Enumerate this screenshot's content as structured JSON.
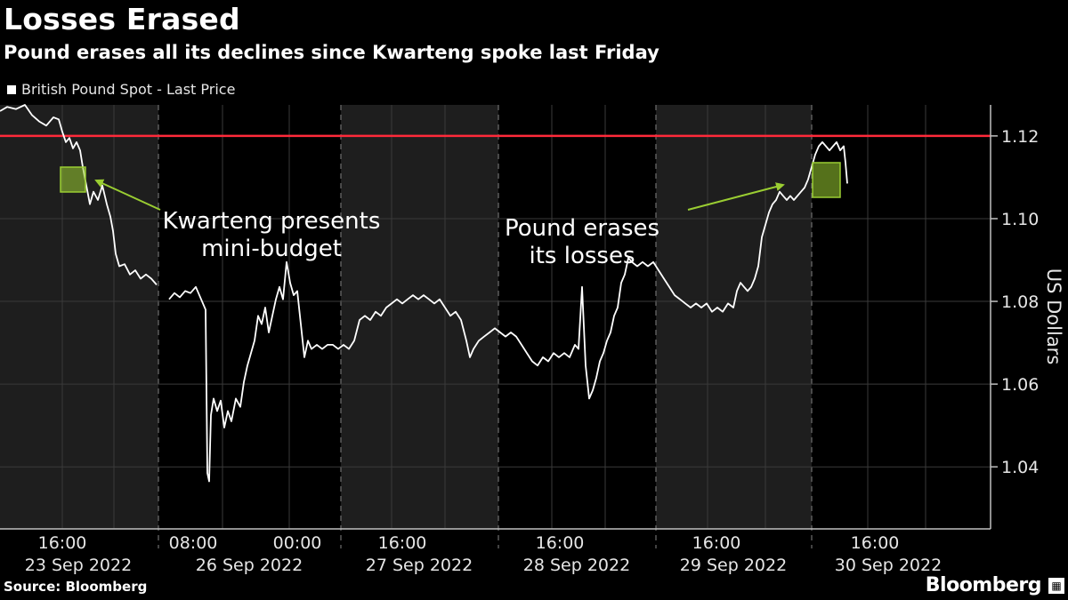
{
  "header": {
    "title": "Losses Erased",
    "subtitle": "Pound erases all its declines since Kwarteng spoke last Friday",
    "legend": "British Pound Spot - Last Price"
  },
  "footer": {
    "source": "Source: Bloomberg",
    "brand": "Bloomberg",
    "brand_icon": "bloomberg-terminal-icon"
  },
  "colors": {
    "background": "#000000",
    "shaded_session": "#1e1e1e",
    "line": "#ffffff",
    "reference_line": "#ff2a3a",
    "highlight": "#9acd32",
    "annotation_text": "#ffffff",
    "axis_text": "#e6e6e6"
  },
  "chart_data": {
    "type": "line",
    "title": "Losses Erased",
    "subtitle": "Pound erases all its declines since Kwarteng spoke last Friday",
    "ylabel": "US Dollars",
    "ylim": [
      1.025,
      1.1275
    ],
    "y_ticks": [
      "1.04",
      "1.06",
      "1.08",
      "1.10",
      "1.12"
    ],
    "x_tick_labels": [
      "16:00",
      "08:00",
      "00:00",
      "16:00",
      "16:00",
      "16:00",
      "16:00"
    ],
    "x_date_labels": [
      "23 Sep 2022",
      "26 Sep 2022",
      "27 Sep 2022",
      "28 Sep 2022",
      "29 Sep 2022",
      "30 Sep 2022"
    ],
    "reference_line": {
      "value": 1.12
    },
    "series": [
      {
        "name": "British Pound Spot - Last Price",
        "points": [
          [
            0,
            1.126
          ],
          [
            8,
            1.127
          ],
          [
            18,
            1.1265
          ],
          [
            28,
            1.1275
          ],
          [
            36,
            1.125
          ],
          [
            44,
            1.1235
          ],
          [
            52,
            1.1225
          ],
          [
            60,
            1.1245
          ],
          [
            66,
            1.124
          ],
          [
            70,
            1.121
          ],
          [
            74,
            1.1185
          ],
          [
            78,
            1.1195
          ],
          [
            82,
            1.117
          ],
          [
            86,
            1.1185
          ],
          [
            90,
            1.1165
          ],
          [
            93,
            1.1125
          ],
          [
            97,
            1.108
          ],
          [
            101,
            1.1035
          ],
          [
            105,
            1.1065
          ],
          [
            110,
            1.1045
          ],
          [
            115,
            1.108
          ],
          [
            120,
            1.1035
          ],
          [
            124,
            1.1005
          ],
          [
            127,
            1.097
          ],
          [
            130,
            1.0915
          ],
          [
            134,
            1.0885
          ],
          [
            140,
            1.089
          ],
          [
            146,
            1.0865
          ],
          [
            152,
            1.0875
          ],
          [
            158,
            1.0855
          ],
          [
            164,
            1.0865
          ],
          [
            170,
            1.0855
          ],
          [
            176,
            1.084
          ],
          [
            190,
            1.0805
          ],
          [
            196,
            1.082
          ],
          [
            202,
            1.081
          ],
          [
            208,
            1.0825
          ],
          [
            214,
            1.082
          ],
          [
            220,
            1.0835
          ],
          [
            226,
            1.0805
          ],
          [
            231,
            1.078
          ],
          [
            233,
            1.0385
          ],
          [
            235,
            1.0365
          ],
          [
            237,
            1.0525
          ],
          [
            240,
            1.0565
          ],
          [
            244,
            1.0535
          ],
          [
            248,
            1.056
          ],
          [
            252,
            1.0495
          ],
          [
            256,
            1.0535
          ],
          [
            260,
            1.051
          ],
          [
            265,
            1.0565
          ],
          [
            270,
            1.0545
          ],
          [
            274,
            1.0605
          ],
          [
            278,
            1.0645
          ],
          [
            282,
            1.0675
          ],
          [
            286,
            1.0705
          ],
          [
            290,
            1.0765
          ],
          [
            294,
            1.0745
          ],
          [
            298,
            1.0785
          ],
          [
            302,
            1.0725
          ],
          [
            306,
            1.0765
          ],
          [
            310,
            1.0805
          ],
          [
            314,
            1.0835
          ],
          [
            318,
            1.0805
          ],
          [
            322,
            1.0895
          ],
          [
            326,
            1.0845
          ],
          [
            330,
            1.0815
          ],
          [
            334,
            1.0825
          ],
          [
            338,
            1.0745
          ],
          [
            342,
            1.0665
          ],
          [
            346,
            1.0705
          ],
          [
            350,
            1.0685
          ],
          [
            356,
            1.0695
          ],
          [
            362,
            1.0685
          ],
          [
            368,
            1.0695
          ],
          [
            374,
            1.0695
          ],
          [
            380,
            1.0685
          ],
          [
            386,
            1.0695
          ],
          [
            392,
            1.0685
          ],
          [
            398,
            1.0705
          ],
          [
            404,
            1.0755
          ],
          [
            410,
            1.0765
          ],
          [
            416,
            1.0755
          ],
          [
            422,
            1.0775
          ],
          [
            428,
            1.0765
          ],
          [
            434,
            1.0785
          ],
          [
            440,
            1.0795
          ],
          [
            446,
            1.0805
          ],
          [
            452,
            1.0795
          ],
          [
            458,
            1.0805
          ],
          [
            464,
            1.0815
          ],
          [
            470,
            1.0805
          ],
          [
            476,
            1.0815
          ],
          [
            482,
            1.0805
          ],
          [
            488,
            1.0795
          ],
          [
            494,
            1.0805
          ],
          [
            500,
            1.0785
          ],
          [
            506,
            1.0765
          ],
          [
            512,
            1.0775
          ],
          [
            518,
            1.0755
          ],
          [
            524,
            1.0705
          ],
          [
            528,
            1.0665
          ],
          [
            532,
            1.0685
          ],
          [
            538,
            1.0705
          ],
          [
            544,
            1.0715
          ],
          [
            550,
            1.0725
          ],
          [
            556,
            1.0735
          ],
          [
            562,
            1.0725
          ],
          [
            568,
            1.0715
          ],
          [
            574,
            1.0725
          ],
          [
            580,
            1.0715
          ],
          [
            586,
            1.0695
          ],
          [
            592,
            1.0675
          ],
          [
            598,
            1.0655
          ],
          [
            604,
            1.0645
          ],
          [
            610,
            1.0665
          ],
          [
            616,
            1.0655
          ],
          [
            622,
            1.0675
          ],
          [
            628,
            1.0665
          ],
          [
            634,
            1.0675
          ],
          [
            640,
            1.0665
          ],
          [
            646,
            1.0695
          ],
          [
            650,
            1.0685
          ],
          [
            654,
            1.0835
          ],
          [
            658,
            1.0645
          ],
          [
            662,
            1.0565
          ],
          [
            666,
            1.0585
          ],
          [
            670,
            1.0615
          ],
          [
            674,
            1.0655
          ],
          [
            678,
            1.0675
          ],
          [
            682,
            1.0705
          ],
          [
            686,
            1.0725
          ],
          [
            690,
            1.0765
          ],
          [
            694,
            1.0785
          ],
          [
            698,
            1.0845
          ],
          [
            702,
            1.0865
          ],
          [
            706,
            1.0905
          ],
          [
            710,
            1.0895
          ],
          [
            716,
            1.0885
          ],
          [
            722,
            1.0895
          ],
          [
            728,
            1.0885
          ],
          [
            734,
            1.0895
          ],
          [
            740,
            1.0875
          ],
          [
            746,
            1.0855
          ],
          [
            752,
            1.0835
          ],
          [
            758,
            1.0815
          ],
          [
            764,
            1.0805
          ],
          [
            770,
            1.0795
          ],
          [
            776,
            1.0785
          ],
          [
            782,
            1.0795
          ],
          [
            788,
            1.0785
          ],
          [
            794,
            1.0795
          ],
          [
            800,
            1.0775
          ],
          [
            806,
            1.0785
          ],
          [
            812,
            1.0775
          ],
          [
            818,
            1.0795
          ],
          [
            824,
            1.0785
          ],
          [
            828,
            1.0825
          ],
          [
            832,
            1.0845
          ],
          [
            836,
            1.0835
          ],
          [
            840,
            1.0825
          ],
          [
            844,
            1.0835
          ],
          [
            848,
            1.0855
          ],
          [
            852,
            1.0885
          ],
          [
            856,
            1.0955
          ],
          [
            860,
            1.0985
          ],
          [
            864,
            1.1015
          ],
          [
            868,
            1.1035
          ],
          [
            872,
            1.1045
          ],
          [
            876,
            1.1065
          ],
          [
            880,
            1.1055
          ],
          [
            884,
            1.1045
          ],
          [
            888,
            1.1055
          ],
          [
            892,
            1.1045
          ],
          [
            896,
            1.1055
          ],
          [
            900,
            1.1065
          ],
          [
            904,
            1.1075
          ],
          [
            908,
            1.1095
          ],
          [
            912,
            1.1125
          ],
          [
            916,
            1.1155
          ],
          [
            920,
            1.1175
          ],
          [
            924,
            1.1185
          ],
          [
            928,
            1.1175
          ],
          [
            932,
            1.1165
          ],
          [
            936,
            1.1175
          ],
          [
            940,
            1.1185
          ],
          [
            944,
            1.1165
          ],
          [
            948,
            1.1175
          ],
          [
            950,
            1.1135
          ],
          [
            952,
            1.1085
          ]
        ]
      }
    ],
    "annotations": [
      {
        "text_lines": [
          "Kwarteng presents",
          "mini-budget"
        ]
      },
      {
        "text_lines": [
          "Pound erases",
          "its losses"
        ]
      }
    ]
  }
}
